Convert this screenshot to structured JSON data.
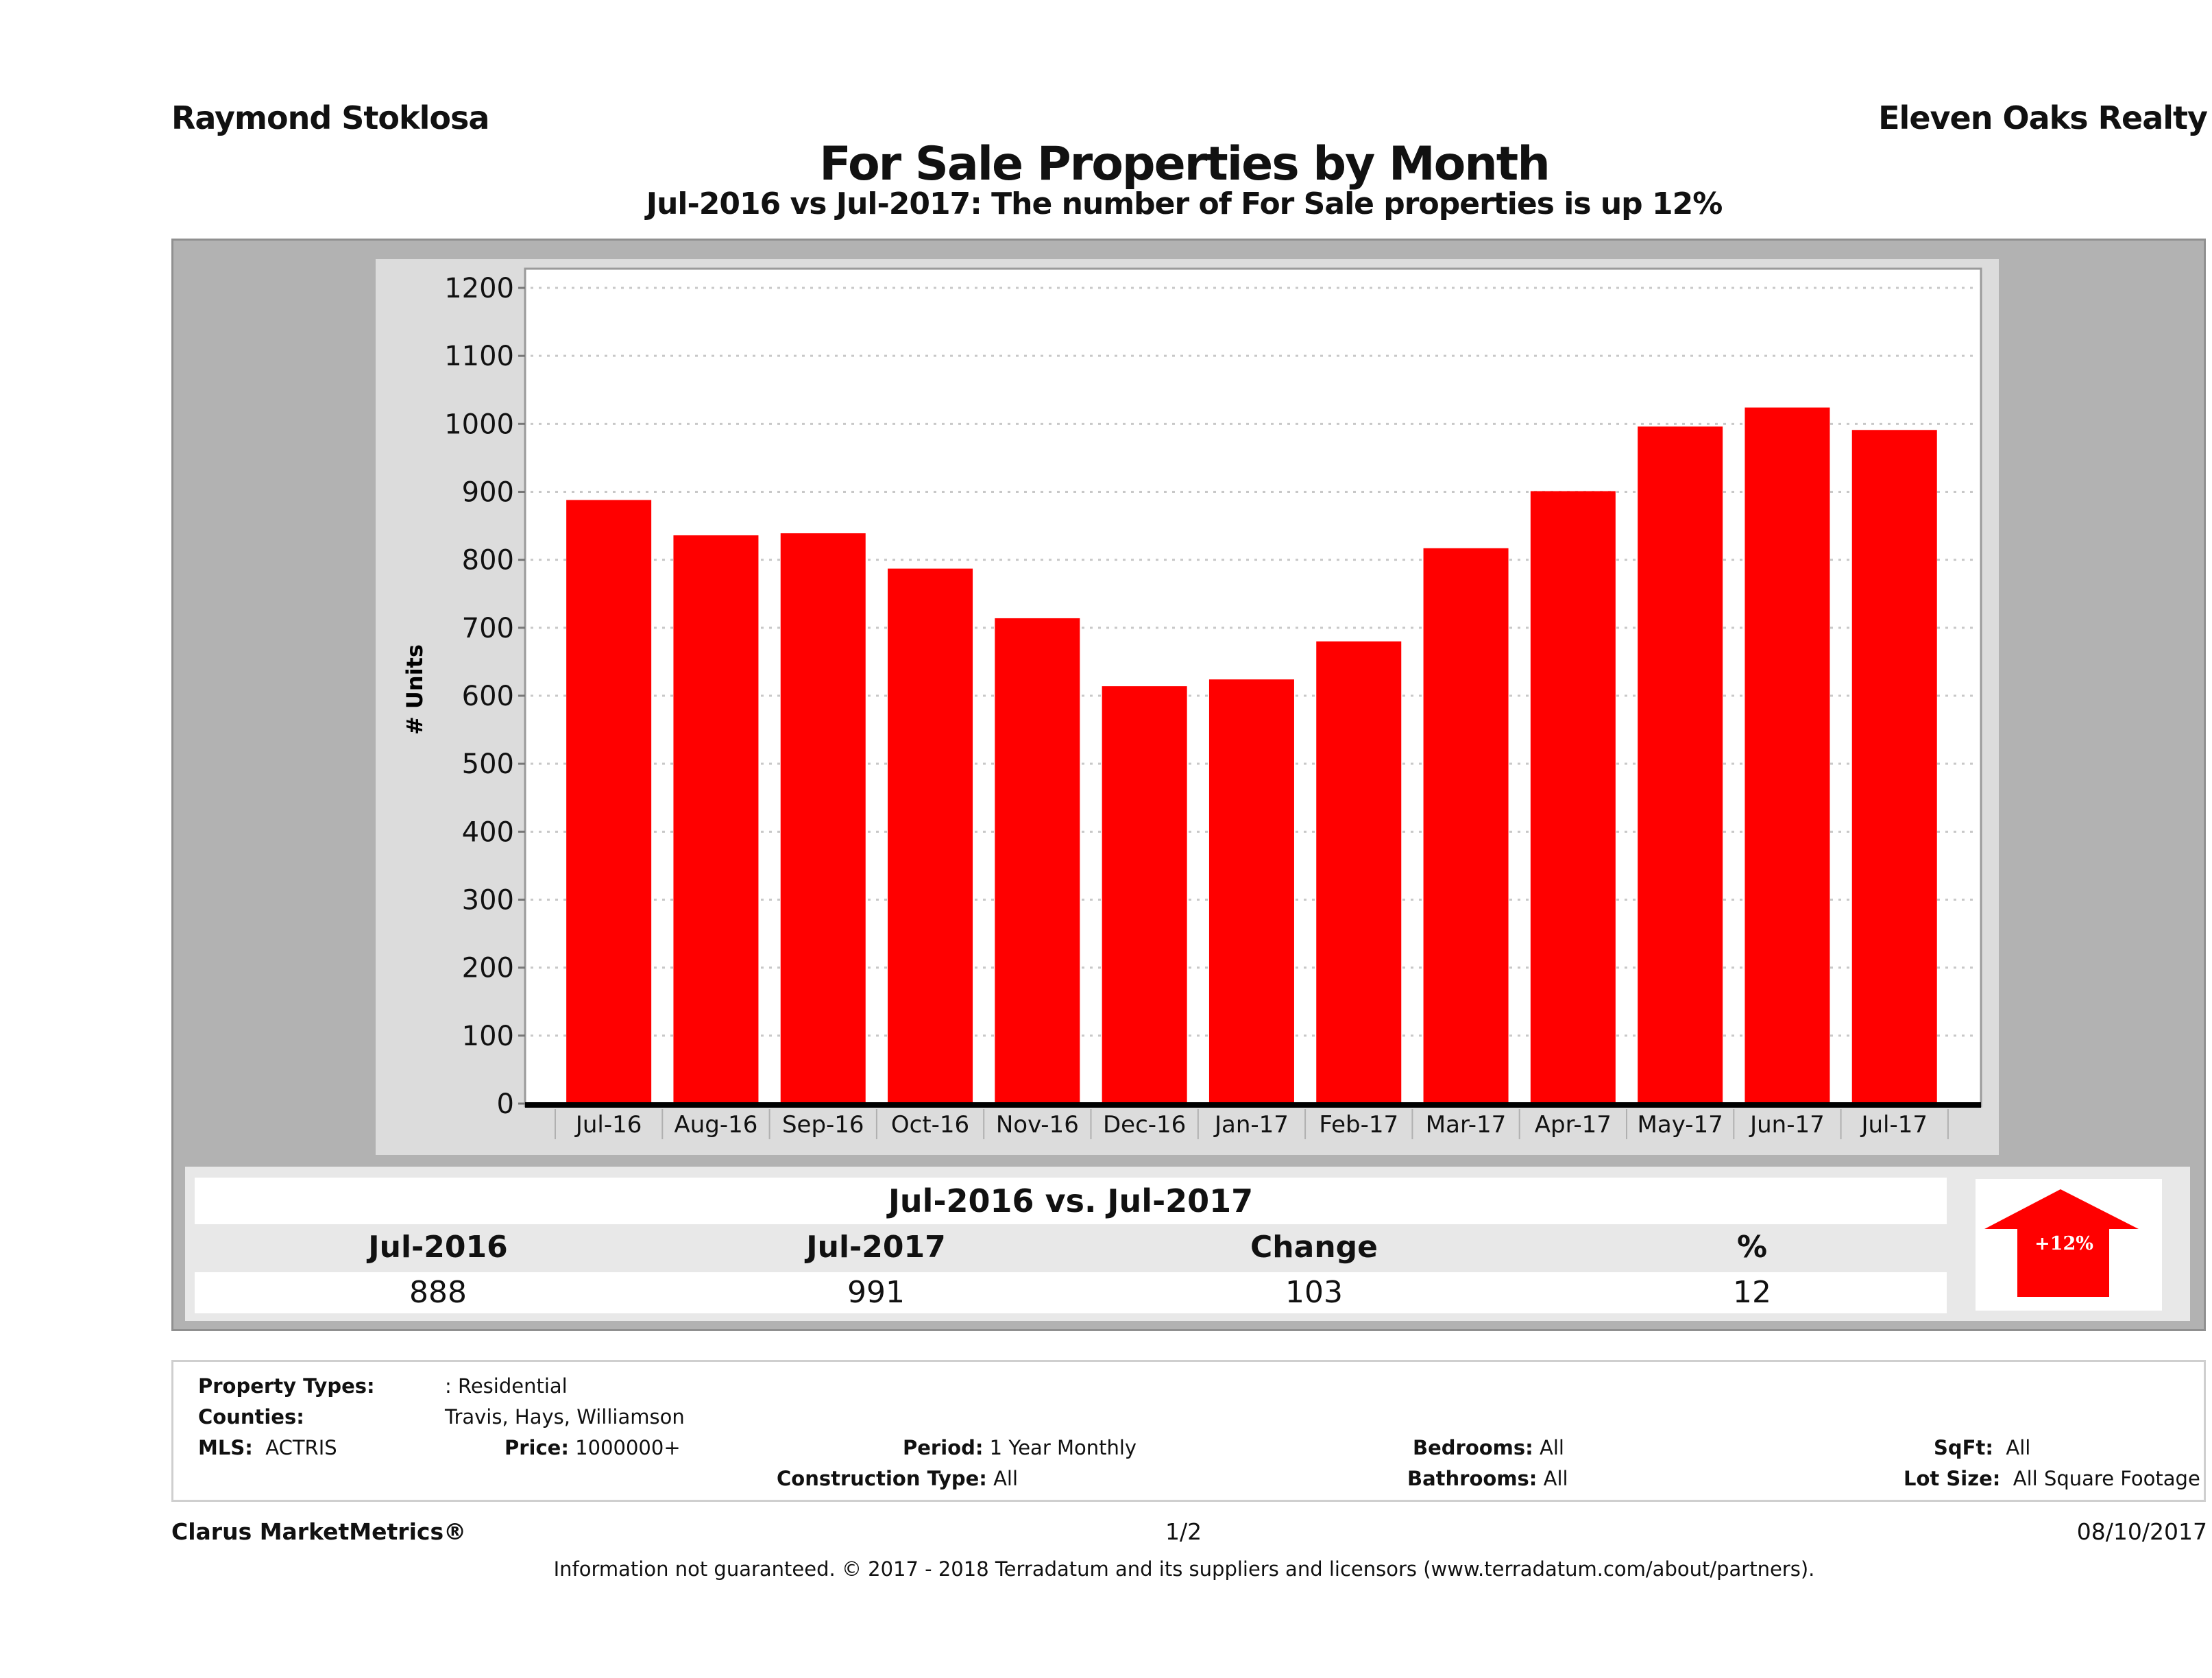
{
  "header": {
    "agent_name": "Raymond Stoklosa",
    "company_name": "Eleven Oaks Realty",
    "title": "For Sale Properties by Month",
    "subtitle": "Jul-2016 vs Jul-2017: The number of For Sale  properties is up 12%"
  },
  "chart_data": {
    "type": "bar",
    "title": "For Sale Properties by Month",
    "subtitle": "Jul-2016 vs Jul-2017: The number of For Sale  properties is up 12%",
    "xlabel": "",
    "ylabel": "# Units",
    "categories": [
      "Jul-16",
      "Aug-16",
      "Sep-16",
      "Oct-16",
      "Nov-16",
      "Dec-16",
      "Jan-17",
      "Feb-17",
      "Mar-17",
      "Apr-17",
      "May-17",
      "Jun-17",
      "Jul-17"
    ],
    "values": [
      888,
      836,
      839,
      787,
      714,
      614,
      624,
      680,
      817,
      901,
      996,
      1024,
      991
    ],
    "ylim": [
      0,
      1200
    ],
    "yticks": [
      0,
      100,
      200,
      300,
      400,
      500,
      600,
      700,
      800,
      900,
      1000,
      1100,
      1200
    ],
    "grid": true,
    "legend": "none",
    "bar_color": "#ff0000"
  },
  "summary": {
    "title": "Jul-2016 vs. Jul-2017",
    "headers": [
      "Jul-2016",
      "Jul-2017",
      "Change",
      "%"
    ],
    "values": [
      "888",
      "991",
      "103",
      "12"
    ],
    "badge_text": "+12%",
    "badge_icon": "up-arrow-icon",
    "badge_color": "#ff0000"
  },
  "filters": {
    "property_types_label": "Property Types:",
    "property_types_value": ": Residential",
    "counties_label": "Counties:",
    "counties_value": "Travis, Hays, Williamson",
    "mls_label": "MLS:",
    "mls_value": "ACTRIS",
    "price_label": "Price:",
    "price_value": "1000000+",
    "period_label": "Period:",
    "period_value": "1 Year Monthly",
    "construction_label": "Construction Type:",
    "construction_value": "All",
    "bedrooms_label": "Bedrooms:",
    "bedrooms_value": "All",
    "bathrooms_label": "Bathrooms:",
    "bathrooms_value": "All",
    "sqft_label": "SqFt:",
    "sqft_value": "All",
    "lot_label": "Lot Size:",
    "lot_value": "All Square Footage"
  },
  "footer": {
    "brand": "Clarus MarketMetrics®",
    "page": "1/2",
    "date": "08/10/2017",
    "disclaimer": "Information not guaranteed. © 2017 - 2018 Terradatum and its suppliers and licensors (www.terradatum.com/about/partners)."
  }
}
